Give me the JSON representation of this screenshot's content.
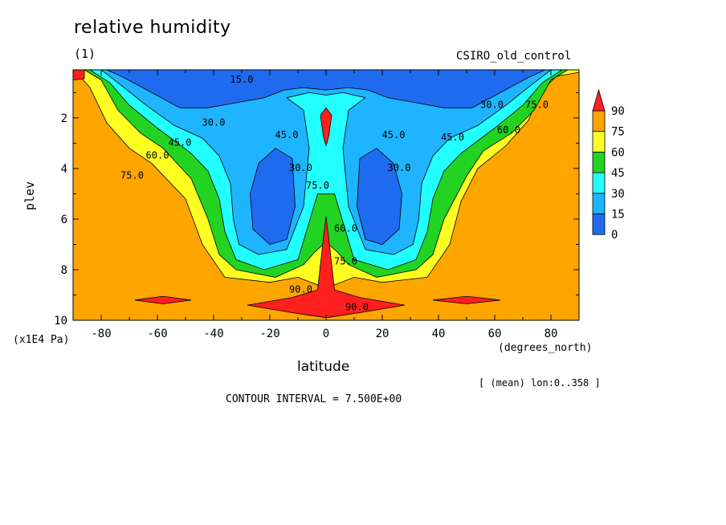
{
  "header": {
    "title": "relative humidity",
    "subtitle": "(1)",
    "dataset": "CSIRO_old_control"
  },
  "footer": {
    "region_note": "[ (mean) lon:0..358 ]",
    "contour_interval": "CONTOUR INTERVAL = 7.500E+00"
  },
  "chart_data": {
    "type": "heatmap",
    "title": "relative humidity",
    "subtitle": "(1)",
    "xlabel": "latitude",
    "xunits": "(degrees_north)",
    "ylabel": "plev",
    "yunits": "(x1E4 Pa)",
    "xlim": [
      -90,
      90
    ],
    "ylim": [
      10,
      0.1
    ],
    "x_ticks": [
      -80,
      -60,
      -40,
      -20,
      0,
      20,
      40,
      60,
      80
    ],
    "y_ticks": [
      2,
      4,
      6,
      8,
      10
    ],
    "y_inverted": true,
    "contour_interval": 7.5,
    "colorbar": {
      "levels": [
        0,
        15,
        30,
        45,
        60,
        75,
        90
      ],
      "labels": [
        "0",
        "15",
        "30",
        "45",
        "60",
        "75",
        "90"
      ],
      "colors": [
        "#1f6bf0",
        "#1fb4ff",
        "#22ffff",
        "#22d322",
        "#ffff22",
        "#ffa500",
        "#ff1f1f"
      ]
    },
    "contour_labels": [
      {
        "lat": -30,
        "plev": 0.6,
        "text": "15.0"
      },
      {
        "lat": -40,
        "plev": 2.3,
        "text": "30.0"
      },
      {
        "lat": -52,
        "plev": 3.1,
        "text": "45.0"
      },
      {
        "lat": -60,
        "plev": 3.6,
        "text": "60.0"
      },
      {
        "lat": -69,
        "plev": 4.4,
        "text": "75.0"
      },
      {
        "lat": -14,
        "plev": 2.8,
        "text": "45.0"
      },
      {
        "lat": -9,
        "plev": 4.1,
        "text": "30.0"
      },
      {
        "lat": -3,
        "plev": 4.8,
        "text": "75.0"
      },
      {
        "lat": 7,
        "plev": 6.5,
        "text": "60.0"
      },
      {
        "lat": 7,
        "plev": 7.8,
        "text": "75.0"
      },
      {
        "lat": -9,
        "plev": 8.9,
        "text": "90.0"
      },
      {
        "lat": 11,
        "plev": 9.6,
        "text": "90.0"
      },
      {
        "lat": 24,
        "plev": 2.8,
        "text": "45.0"
      },
      {
        "lat": 26,
        "plev": 4.1,
        "text": "30.0"
      },
      {
        "lat": 45,
        "plev": 2.9,
        "text": "45.0"
      },
      {
        "lat": 59,
        "plev": 1.6,
        "text": "30.0"
      },
      {
        "lat": 65,
        "plev": 2.6,
        "text": "60.0"
      },
      {
        "lat": 75,
        "plev": 1.6,
        "text": "75.0"
      }
    ],
    "regions": [
      {
        "level": 75,
        "points": [
          [
            -90,
            0.1
          ],
          [
            90,
            0.1
          ],
          [
            90,
            10
          ],
          [
            -90,
            10
          ]
        ]
      },
      {
        "level": 60,
        "points": [
          [
            -90,
            0.1
          ],
          [
            90,
            0.1
          ],
          [
            90,
            0.2
          ],
          [
            82,
            0.35
          ],
          [
            76,
            1.0
          ],
          [
            72,
            2.1
          ],
          [
            64,
            3.1
          ],
          [
            54,
            4.0
          ],
          [
            48,
            5.3
          ],
          [
            44,
            7.0
          ],
          [
            36,
            8.3
          ],
          [
            20,
            8.5
          ],
          [
            10,
            8.3
          ],
          [
            3,
            8.6
          ],
          [
            0,
            8.9
          ],
          [
            -3,
            8.6
          ],
          [
            -10,
            8.3
          ],
          [
            -20,
            8.5
          ],
          [
            -36,
            8.3
          ],
          [
            -44,
            7.0
          ],
          [
            -50,
            5.2
          ],
          [
            -62,
            3.8
          ],
          [
            -70,
            3.2
          ],
          [
            -78,
            2.2
          ],
          [
            -84,
            0.8
          ],
          [
            -88,
            0.3
          ],
          [
            -90,
            0.25
          ]
        ]
      },
      {
        "level": 45,
        "points": [
          [
            -86,
            0.1
          ],
          [
            86,
            0.1
          ],
          [
            80,
            0.5
          ],
          [
            74,
            1.7
          ],
          [
            66,
            2.6
          ],
          [
            56,
            3.3
          ],
          [
            50,
            4.3
          ],
          [
            42,
            6.0
          ],
          [
            38,
            7.4
          ],
          [
            32,
            8.0
          ],
          [
            18,
            8.3
          ],
          [
            8,
            7.8
          ],
          [
            4,
            7.3
          ],
          [
            0,
            6.9
          ],
          [
            -4,
            7.3
          ],
          [
            -8,
            7.8
          ],
          [
            -18,
            8.3
          ],
          [
            -32,
            8.0
          ],
          [
            -38,
            7.4
          ],
          [
            -42,
            6.0
          ],
          [
            -48,
            4.4
          ],
          [
            -58,
            3.2
          ],
          [
            -66,
            2.6
          ],
          [
            -74,
            1.7
          ],
          [
            -80,
            0.5
          ]
        ]
      },
      {
        "level": 30,
        "points": [
          [
            -84,
            0.1
          ],
          [
            84,
            0.1
          ],
          [
            77,
            0.6
          ],
          [
            70,
            1.5
          ],
          [
            60,
            2.4
          ],
          [
            48,
            3.4
          ],
          [
            42,
            4.1
          ],
          [
            38,
            5.2
          ],
          [
            36,
            6.5
          ],
          [
            32,
            7.6
          ],
          [
            22,
            8.0
          ],
          [
            10,
            7.6
          ],
          [
            3,
            5.0
          ],
          [
            -3,
            5.0
          ],
          [
            -10,
            7.6
          ],
          [
            -22,
            8.0
          ],
          [
            -32,
            7.6
          ],
          [
            -36,
            6.5
          ],
          [
            -38,
            5.2
          ],
          [
            -42,
            4.1
          ],
          [
            -48,
            3.4
          ],
          [
            -60,
            2.4
          ],
          [
            -70,
            1.5
          ],
          [
            -77,
            0.6
          ]
        ]
      },
      {
        "level": 15,
        "points": [
          [
            -80,
            0.1
          ],
          [
            80,
            0.1
          ],
          [
            73,
            0.7
          ],
          [
            64,
            1.5
          ],
          [
            54,
            2.3
          ],
          [
            44,
            2.8
          ],
          [
            38,
            3.5
          ],
          [
            34,
            4.6
          ],
          [
            33,
            6.0
          ],
          [
            31,
            7.0
          ],
          [
            24,
            7.4
          ],
          [
            14,
            7.2
          ],
          [
            8,
            5.5
          ],
          [
            6,
            3.2
          ],
          [
            8,
            1.7
          ],
          [
            14,
            1.2
          ],
          [
            6,
            1.0
          ],
          [
            0,
            1.1
          ],
          [
            -6,
            1.0
          ],
          [
            -14,
            1.2
          ],
          [
            -8,
            1.7
          ],
          [
            -6,
            3.2
          ],
          [
            -8,
            5.5
          ],
          [
            -14,
            7.2
          ],
          [
            -24,
            7.4
          ],
          [
            -31,
            7.0
          ],
          [
            -33,
            6.0
          ],
          [
            -34,
            4.6
          ],
          [
            -38,
            3.5
          ],
          [
            -44,
            2.8
          ],
          [
            -54,
            2.3
          ],
          [
            -64,
            1.5
          ],
          [
            -73,
            0.7
          ]
        ]
      },
      {
        "level": 0,
        "points": [
          [
            -78,
            0.1
          ],
          [
            78,
            0.1
          ],
          [
            72,
            0.4
          ],
          [
            62,
            1.0
          ],
          [
            52,
            1.6
          ],
          [
            42,
            1.6
          ],
          [
            32,
            1.4
          ],
          [
            22,
            1.2
          ],
          [
            15,
            0.9
          ],
          [
            8,
            0.8
          ],
          [
            0,
            0.9
          ],
          [
            -8,
            0.8
          ],
          [
            -15,
            0.9
          ],
          [
            -22,
            1.2
          ],
          [
            -32,
            1.4
          ],
          [
            -42,
            1.6
          ],
          [
            -52,
            1.6
          ],
          [
            -62,
            1.0
          ],
          [
            -72,
            0.4
          ]
        ]
      },
      {
        "level": 0,
        "points": [
          [
            -24,
            3.8
          ],
          [
            -18,
            3.2
          ],
          [
            -12,
            3.6
          ],
          [
            -11,
            5.5
          ],
          [
            -14,
            6.8
          ],
          [
            -20,
            7.0
          ],
          [
            -26,
            6.4
          ],
          [
            -27,
            5.0
          ]
        ]
      },
      {
        "level": 0,
        "points": [
          [
            12,
            3.6
          ],
          [
            18,
            3.2
          ],
          [
            24,
            3.8
          ],
          [
            27,
            5.0
          ],
          [
            26,
            6.4
          ],
          [
            20,
            7.0
          ],
          [
            14,
            6.8
          ],
          [
            11,
            5.5
          ]
        ]
      },
      {
        "level": 90,
        "points": [
          [
            -3,
            8.8
          ],
          [
            -1,
            6.8
          ],
          [
            0,
            5.9
          ],
          [
            1,
            6.8
          ],
          [
            3,
            8.8
          ],
          [
            12,
            9.1
          ],
          [
            28,
            9.4
          ],
          [
            12,
            9.7
          ],
          [
            0,
            9.9
          ],
          [
            -12,
            9.7
          ],
          [
            -28,
            9.4
          ],
          [
            -12,
            9.1
          ]
        ]
      },
      {
        "level": 90,
        "points": [
          [
            -68,
            9.2
          ],
          [
            -58,
            9.05
          ],
          [
            -48,
            9.2
          ],
          [
            -58,
            9.35
          ]
        ]
      },
      {
        "level": 90,
        "points": [
          [
            38,
            9.2
          ],
          [
            50,
            9.05
          ],
          [
            62,
            9.2
          ],
          [
            50,
            9.35
          ]
        ]
      },
      {
        "level": 90,
        "points": [
          [
            -2,
            1.9
          ],
          [
            0,
            1.6
          ],
          [
            2,
            1.9
          ],
          [
            1,
            2.7
          ],
          [
            0,
            3.1
          ],
          [
            -1,
            2.7
          ]
        ]
      },
      {
        "level": 90,
        "points": [
          [
            -90,
            0.1
          ],
          [
            -86,
            0.1
          ],
          [
            -86,
            0.45
          ],
          [
            -90,
            0.5
          ]
        ]
      }
    ]
  }
}
